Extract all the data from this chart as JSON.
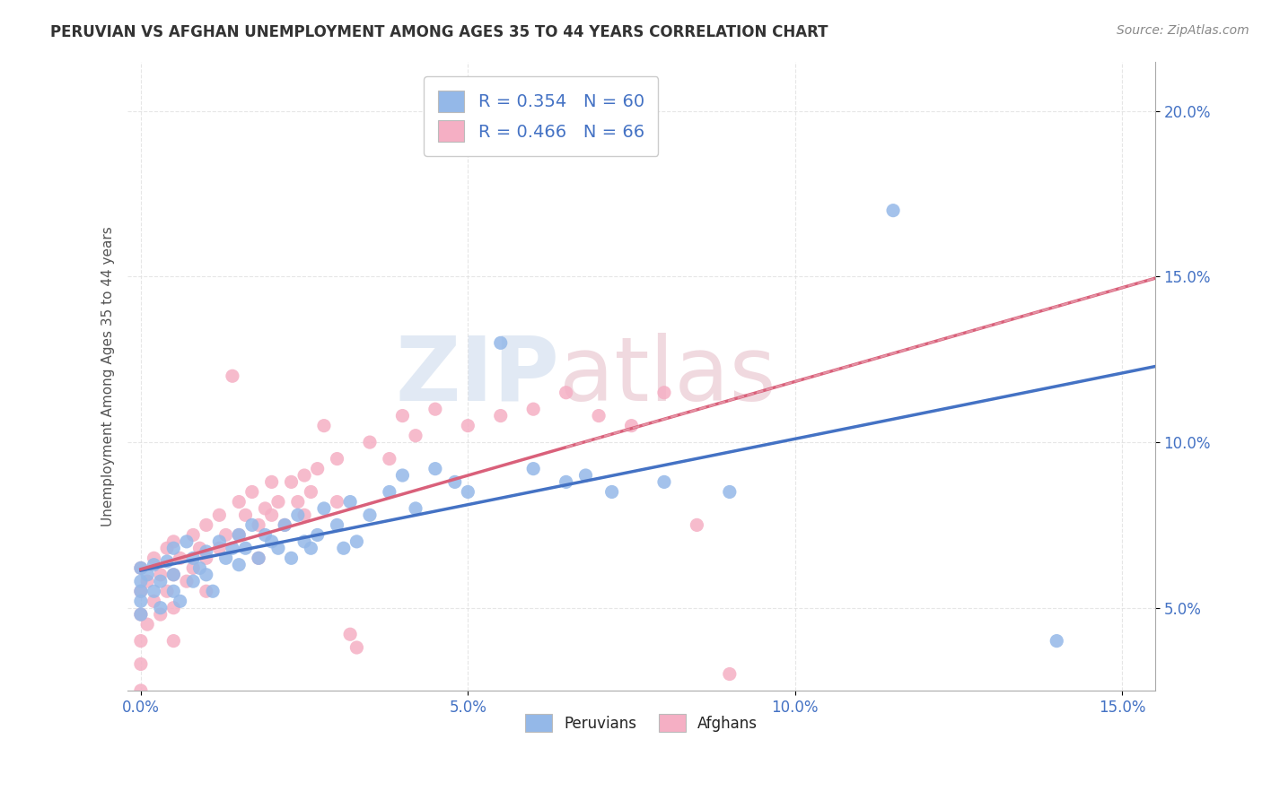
{
  "title": "PERUVIAN VS AFGHAN UNEMPLOYMENT AMONG AGES 35 TO 44 YEARS CORRELATION CHART",
  "source": "Source: ZipAtlas.com",
  "ylabel": "Unemployment Among Ages 35 to 44 years",
  "xlim": [
    -0.002,
    0.155
  ],
  "ylim": [
    0.025,
    0.215
  ],
  "xticks": [
    0.0,
    0.05,
    0.1,
    0.15
  ],
  "yticks": [
    0.05,
    0.1,
    0.15,
    0.2
  ],
  "xtick_labels": [
    "0.0%",
    "5.0%",
    "10.0%",
    "15.0%"
  ],
  "ytick_labels": [
    "5.0%",
    "10.0%",
    "15.0%",
    "20.0%"
  ],
  "peruvian_color": "#94b8e8",
  "afghan_color": "#f5afc4",
  "peruvian_R": 0.354,
  "peruvian_N": 60,
  "afghan_R": 0.466,
  "afghan_N": 66,
  "peruvian_line_color": "#4472c4",
  "afghan_line_color": "#d9607a",
  "afghan_dashed_color": "#e8a0b0",
  "watermark_zip": "ZIP",
  "watermark_atlas": "atlas",
  "background_color": "#ffffff",
  "grid_color": "#e0e0e0",
  "title_color": "#333333",
  "source_color": "#888888",
  "tick_color": "#4472c4",
  "ylabel_color": "#555555",
  "legend_text_color": "#4472c4",
  "peruvian_scatter": [
    [
      0.0,
      0.055
    ],
    [
      0.0,
      0.052
    ],
    [
      0.0,
      0.058
    ],
    [
      0.0,
      0.048
    ],
    [
      0.0,
      0.062
    ],
    [
      0.001,
      0.06
    ],
    [
      0.002,
      0.055
    ],
    [
      0.002,
      0.063
    ],
    [
      0.003,
      0.058
    ],
    [
      0.003,
      0.05
    ],
    [
      0.004,
      0.064
    ],
    [
      0.005,
      0.068
    ],
    [
      0.005,
      0.055
    ],
    [
      0.005,
      0.06
    ],
    [
      0.006,
      0.052
    ],
    [
      0.007,
      0.07
    ],
    [
      0.008,
      0.065
    ],
    [
      0.008,
      0.058
    ],
    [
      0.009,
      0.062
    ],
    [
      0.01,
      0.067
    ],
    [
      0.01,
      0.06
    ],
    [
      0.011,
      0.055
    ],
    [
      0.012,
      0.07
    ],
    [
      0.013,
      0.065
    ],
    [
      0.014,
      0.068
    ],
    [
      0.015,
      0.072
    ],
    [
      0.015,
      0.063
    ],
    [
      0.016,
      0.068
    ],
    [
      0.017,
      0.075
    ],
    [
      0.018,
      0.065
    ],
    [
      0.019,
      0.072
    ],
    [
      0.02,
      0.07
    ],
    [
      0.021,
      0.068
    ],
    [
      0.022,
      0.075
    ],
    [
      0.023,
      0.065
    ],
    [
      0.024,
      0.078
    ],
    [
      0.025,
      0.07
    ],
    [
      0.026,
      0.068
    ],
    [
      0.027,
      0.072
    ],
    [
      0.028,
      0.08
    ],
    [
      0.03,
      0.075
    ],
    [
      0.031,
      0.068
    ],
    [
      0.032,
      0.082
    ],
    [
      0.033,
      0.07
    ],
    [
      0.035,
      0.078
    ],
    [
      0.038,
      0.085
    ],
    [
      0.04,
      0.09
    ],
    [
      0.042,
      0.08
    ],
    [
      0.045,
      0.092
    ],
    [
      0.048,
      0.088
    ],
    [
      0.05,
      0.085
    ],
    [
      0.055,
      0.13
    ],
    [
      0.06,
      0.092
    ],
    [
      0.065,
      0.088
    ],
    [
      0.068,
      0.09
    ],
    [
      0.072,
      0.085
    ],
    [
      0.08,
      0.088
    ],
    [
      0.09,
      0.085
    ],
    [
      0.115,
      0.17
    ],
    [
      0.14,
      0.04
    ]
  ],
  "afghan_scatter": [
    [
      0.0,
      0.062
    ],
    [
      0.0,
      0.055
    ],
    [
      0.0,
      0.048
    ],
    [
      0.0,
      0.04
    ],
    [
      0.0,
      0.033
    ],
    [
      0.0,
      0.025
    ],
    [
      0.001,
      0.058
    ],
    [
      0.001,
      0.045
    ],
    [
      0.002,
      0.065
    ],
    [
      0.002,
      0.052
    ],
    [
      0.003,
      0.06
    ],
    [
      0.003,
      0.048
    ],
    [
      0.004,
      0.068
    ],
    [
      0.004,
      0.055
    ],
    [
      0.005,
      0.07
    ],
    [
      0.005,
      0.06
    ],
    [
      0.005,
      0.05
    ],
    [
      0.005,
      0.04
    ],
    [
      0.006,
      0.065
    ],
    [
      0.007,
      0.058
    ],
    [
      0.008,
      0.072
    ],
    [
      0.008,
      0.062
    ],
    [
      0.009,
      0.068
    ],
    [
      0.01,
      0.075
    ],
    [
      0.01,
      0.065
    ],
    [
      0.01,
      0.055
    ],
    [
      0.012,
      0.078
    ],
    [
      0.012,
      0.068
    ],
    [
      0.013,
      0.072
    ],
    [
      0.014,
      0.12
    ],
    [
      0.015,
      0.082
    ],
    [
      0.015,
      0.072
    ],
    [
      0.016,
      0.078
    ],
    [
      0.017,
      0.085
    ],
    [
      0.018,
      0.075
    ],
    [
      0.018,
      0.065
    ],
    [
      0.019,
      0.08
    ],
    [
      0.02,
      0.088
    ],
    [
      0.02,
      0.078
    ],
    [
      0.021,
      0.082
    ],
    [
      0.022,
      0.075
    ],
    [
      0.023,
      0.088
    ],
    [
      0.024,
      0.082
    ],
    [
      0.025,
      0.09
    ],
    [
      0.025,
      0.078
    ],
    [
      0.026,
      0.085
    ],
    [
      0.027,
      0.092
    ],
    [
      0.028,
      0.105
    ],
    [
      0.03,
      0.095
    ],
    [
      0.03,
      0.082
    ],
    [
      0.032,
      0.042
    ],
    [
      0.033,
      0.038
    ],
    [
      0.035,
      0.1
    ],
    [
      0.038,
      0.095
    ],
    [
      0.04,
      0.108
    ],
    [
      0.042,
      0.102
    ],
    [
      0.045,
      0.11
    ],
    [
      0.05,
      0.105
    ],
    [
      0.055,
      0.108
    ],
    [
      0.06,
      0.11
    ],
    [
      0.065,
      0.115
    ],
    [
      0.07,
      0.108
    ],
    [
      0.075,
      0.105
    ],
    [
      0.08,
      0.115
    ],
    [
      0.085,
      0.075
    ],
    [
      0.09,
      0.03
    ]
  ]
}
